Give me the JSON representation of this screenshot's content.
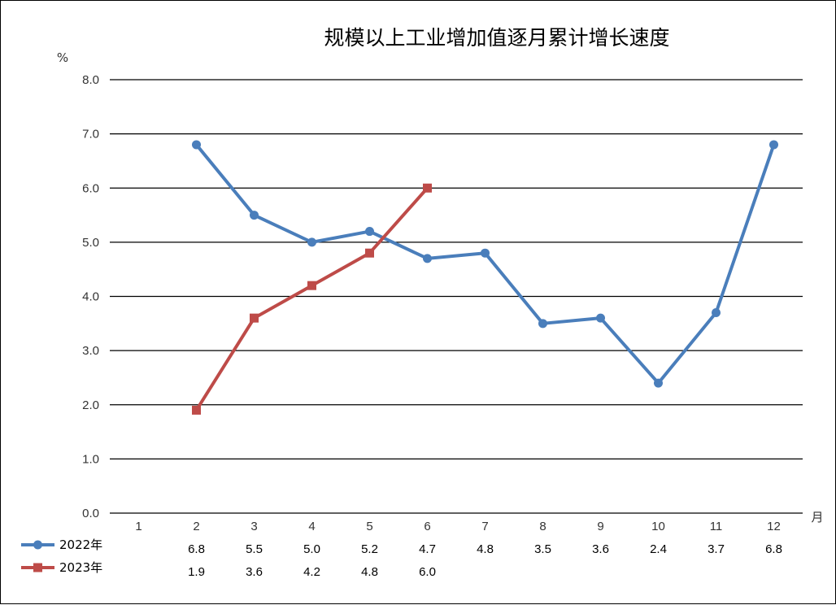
{
  "chart_data": {
    "type": "line",
    "title": "规模以上工业增加值逐月累计增长速度",
    "ylabel": "%",
    "xlabel": "月",
    "categories": [
      "1",
      "2",
      "3",
      "4",
      "5",
      "6",
      "7",
      "8",
      "9",
      "10",
      "11",
      "12"
    ],
    "ylim": [
      0,
      8
    ],
    "yticks": [
      "0.0",
      "1.0",
      "2.0",
      "3.0",
      "4.0",
      "5.0",
      "6.0",
      "7.0",
      "8.0"
    ],
    "grid": true,
    "legend_placement": "bottom-left data table",
    "series": [
      {
        "name": "2022年",
        "color": "#4A7EBB",
        "marker": "circle",
        "values": [
          null,
          6.8,
          5.5,
          5.0,
          5.2,
          4.7,
          4.8,
          3.5,
          3.6,
          2.4,
          3.7,
          6.8
        ],
        "labels": [
          "",
          "6.8",
          "5.5",
          "5.0",
          "5.2",
          "4.7",
          "4.8",
          "3.5",
          "3.6",
          "2.4",
          "3.7",
          "6.8"
        ]
      },
      {
        "name": "2023年",
        "color": "#BE4B48",
        "marker": "square",
        "values": [
          null,
          1.9,
          3.6,
          4.2,
          4.8,
          6.0,
          null,
          null,
          null,
          null,
          null,
          null
        ],
        "labels": [
          "",
          "1.9",
          "3.6",
          "4.2",
          "4.8",
          "6.0",
          "",
          "",
          "",
          "",
          "",
          ""
        ]
      }
    ]
  }
}
